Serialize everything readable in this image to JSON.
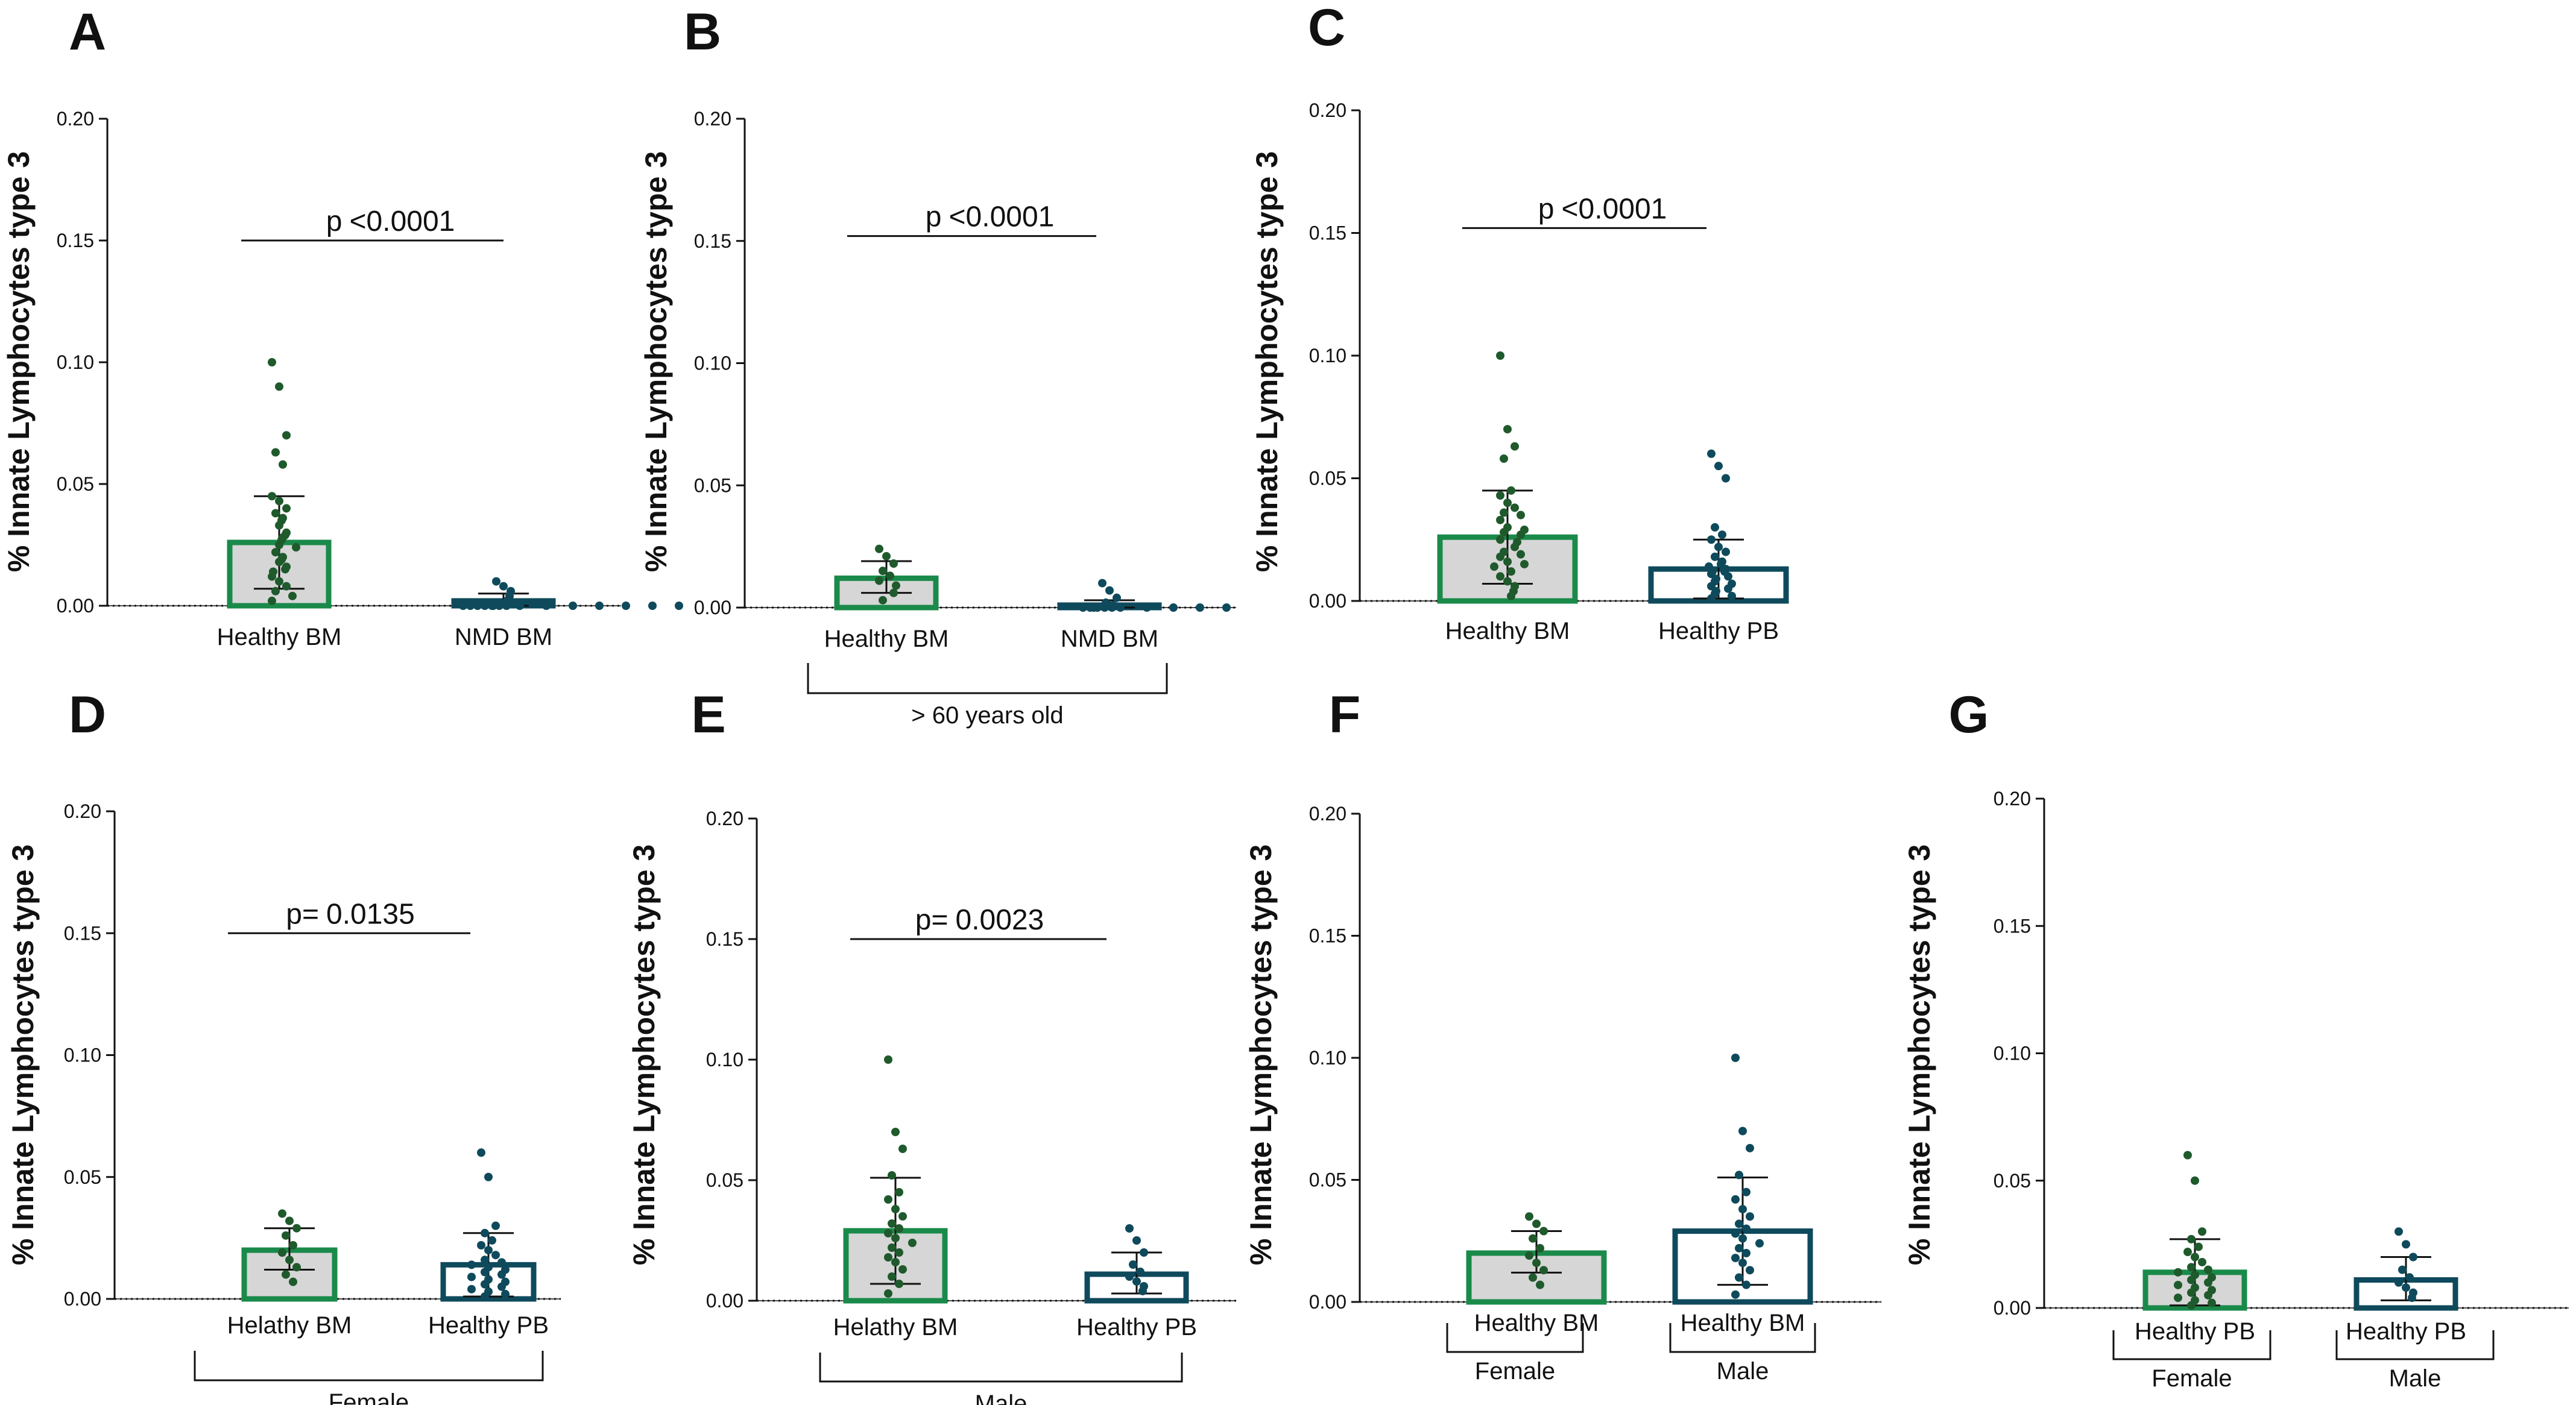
{
  "colors": {
    "green": "#1a8a4a",
    "teal": "#0e4a5c",
    "dot_green": "#1f5a2c",
    "dot_teal": "#0e4a5c",
    "bar_fill_green": "#d6d6d6",
    "bar_fill_teal": "#ffffff",
    "axis": "#111111"
  },
  "chart_data": [
    {
      "id": "A",
      "type": "bar",
      "panel": "A",
      "ylabel": "% Innate Lymphocytes type 3",
      "ylim": [
        0,
        0.2
      ],
      "yticks": [
        "0.00",
        "0.05",
        "0.10",
        "0.15",
        "0.20"
      ],
      "categories": [
        "Healthy BM",
        "NMD BM"
      ],
      "series": [
        {
          "name": "Healthy BM",
          "color": "green",
          "value": 0.026,
          "sd_low": 0.007,
          "sd_high": 0.045,
          "points": [
            0.1,
            0.09,
            0.07,
            0.063,
            0.058,
            0.045,
            0.043,
            0.04,
            0.038,
            0.036,
            0.035,
            0.033,
            0.03,
            0.029,
            0.028,
            0.027,
            0.025,
            0.024,
            0.022,
            0.02,
            0.019,
            0.018,
            0.016,
            0.015,
            0.014,
            0.012,
            0.01,
            0.008,
            0.006,
            0.004,
            0.002
          ]
        },
        {
          "name": "NMD BM",
          "color": "teal",
          "value": 0.002,
          "sd_low": 0.0,
          "sd_high": 0.005,
          "points": [
            0.01,
            0.008,
            0.006,
            0.004,
            0.002,
            0.001,
            0.001,
            0.001,
            0,
            0,
            0,
            0,
            0,
            0,
            0,
            0,
            0,
            0,
            0,
            0,
            0,
            0,
            0
          ]
        }
      ],
      "annotation": {
        "label": "p",
        "value": "<0.0001",
        "y": 0.15
      },
      "group_label": ""
    },
    {
      "id": "B",
      "type": "bar",
      "panel": "B",
      "ylabel": "% Innate Lymphocytes type 3",
      "ylim": [
        0,
        0.2
      ],
      "yticks": [
        "0.00",
        "0.05",
        "0.10",
        "0.15",
        "0.20"
      ],
      "categories": [
        "Healthy BM",
        "NMD BM"
      ],
      "series": [
        {
          "name": "Healthy BM",
          "color": "green",
          "value": 0.012,
          "sd_low": 0.006,
          "sd_high": 0.019,
          "points": [
            0.024,
            0.021,
            0.018,
            0.015,
            0.013,
            0.011,
            0.009,
            0.006,
            0.003
          ]
        },
        {
          "name": "NMD BM",
          "color": "teal",
          "value": 0.001,
          "sd_low": 0.0,
          "sd_high": 0.003,
          "points": [
            0.01,
            0.007,
            0.004,
            0.002,
            0.001,
            0,
            0,
            0,
            0,
            0,
            0,
            0,
            0,
            0,
            0,
            0
          ]
        }
      ],
      "annotation": {
        "label": "p",
        "value": "<0.0001",
        "y": 0.152
      },
      "group_label": "> 60 years old"
    },
    {
      "id": "C",
      "type": "bar",
      "panel": "C",
      "ylabel": "% Innate Lymphocytes type 3",
      "ylim": [
        0,
        0.2
      ],
      "yticks": [
        "0.00",
        "0.05",
        "0.10",
        "0.15",
        "0.20"
      ],
      "categories": [
        "Healthy BM",
        "Healthy PB"
      ],
      "series": [
        {
          "name": "Healthy BM",
          "color": "green",
          "value": 0.026,
          "sd_low": 0.007,
          "sd_high": 0.045,
          "points": [
            0.1,
            0.07,
            0.063,
            0.058,
            0.045,
            0.043,
            0.04,
            0.038,
            0.036,
            0.035,
            0.033,
            0.03,
            0.029,
            0.028,
            0.027,
            0.025,
            0.024,
            0.022,
            0.02,
            0.019,
            0.018,
            0.016,
            0.015,
            0.014,
            0.012,
            0.01,
            0.008,
            0.006,
            0.004,
            0.002
          ]
        },
        {
          "name": "Healthy PB",
          "color": "teal",
          "value": 0.013,
          "sd_low": 0.001,
          "sd_high": 0.025,
          "points": [
            0.06,
            0.055,
            0.05,
            0.03,
            0.027,
            0.025,
            0.022,
            0.02,
            0.018,
            0.016,
            0.015,
            0.014,
            0.013,
            0.012,
            0.012,
            0.011,
            0.01,
            0.009,
            0.008,
            0.007,
            0.006,
            0.005,
            0.004,
            0.003,
            0.002,
            0.001
          ]
        }
      ],
      "annotation": {
        "label": "p",
        "value": "<0.0001",
        "y": 0.152
      },
      "group_label": ""
    },
    {
      "id": "D",
      "type": "bar",
      "panel": "D",
      "ylabel": "% Innate Lymphocytes type 3",
      "ylim": [
        0,
        0.2
      ],
      "yticks": [
        "0.00",
        "0.05",
        "0.10",
        "0.15",
        "0.20"
      ],
      "categories": [
        "Helathy BM",
        "Healthy PB"
      ],
      "series": [
        {
          "name": "Helathy BM",
          "color": "green",
          "value": 0.02,
          "sd_low": 0.012,
          "sd_high": 0.029,
          "points": [
            0.035,
            0.032,
            0.029,
            0.026,
            0.022,
            0.019,
            0.016,
            0.013,
            0.01,
            0.007
          ]
        },
        {
          "name": "Healthy PB",
          "color": "teal",
          "value": 0.014,
          "sd_low": 0.001,
          "sd_high": 0.027,
          "points": [
            0.06,
            0.05,
            0.03,
            0.027,
            0.024,
            0.022,
            0.02,
            0.018,
            0.016,
            0.015,
            0.014,
            0.013,
            0.012,
            0.011,
            0.01,
            0.009,
            0.008,
            0.007,
            0.006,
            0.005,
            0.004,
            0.003,
            0.002,
            0.001
          ]
        }
      ],
      "annotation": {
        "label": "p=",
        "value": "0.0135",
        "y": 0.15
      },
      "group_label": "Female"
    },
    {
      "id": "E",
      "type": "bar",
      "panel": "E",
      "ylabel": "% Innate Lymphocytes type 3",
      "ylim": [
        0,
        0.2
      ],
      "yticks": [
        "0.00",
        "0.05",
        "0.10",
        "0.15",
        "0.20"
      ],
      "categories": [
        "Helathy BM",
        "Healthy PB"
      ],
      "series": [
        {
          "name": "Helathy BM",
          "color": "green",
          "value": 0.029,
          "sd_low": 0.007,
          "sd_high": 0.051,
          "points": [
            0.1,
            0.07,
            0.063,
            0.052,
            0.045,
            0.042,
            0.038,
            0.035,
            0.032,
            0.03,
            0.028,
            0.026,
            0.024,
            0.022,
            0.02,
            0.018,
            0.016,
            0.013,
            0.01,
            0.007,
            0.003
          ]
        },
        {
          "name": "Healthy PB",
          "color": "teal",
          "value": 0.011,
          "sd_low": 0.003,
          "sd_high": 0.02,
          "points": [
            0.03,
            0.025,
            0.02,
            0.015,
            0.012,
            0.01,
            0.008,
            0.006,
            0.004
          ]
        }
      ],
      "annotation": {
        "label": "p=",
        "value": "0.0023",
        "y": 0.15
      },
      "group_label": "Male"
    },
    {
      "id": "F",
      "type": "bar",
      "panel": "F",
      "ylabel": "% Innate Lymphocytes type 3",
      "ylim": [
        0,
        0.2
      ],
      "yticks": [
        "0.00",
        "0.05",
        "0.10",
        "0.15",
        "0.20"
      ],
      "categories": [
        "Healthy BM",
        "Healthy BM"
      ],
      "series": [
        {
          "name": "Healthy BM (Female)",
          "color": "green",
          "value": 0.02,
          "sd_low": 0.012,
          "sd_high": 0.029,
          "points": [
            0.035,
            0.032,
            0.029,
            0.026,
            0.022,
            0.019,
            0.016,
            0.013,
            0.01,
            0.007
          ]
        },
        {
          "name": "Healthy BM (Male)",
          "color": "teal",
          "value": 0.029,
          "sd_low": 0.007,
          "sd_high": 0.051,
          "points": [
            0.1,
            0.07,
            0.063,
            0.052,
            0.045,
            0.042,
            0.038,
            0.035,
            0.032,
            0.03,
            0.028,
            0.026,
            0.024,
            0.022,
            0.02,
            0.018,
            0.016,
            0.013,
            0.01,
            0.007,
            0.003
          ]
        }
      ],
      "annotation": null,
      "subgroups": [
        "Female",
        "Male"
      ],
      "group_label": ""
    },
    {
      "id": "G",
      "type": "bar",
      "panel": "G",
      "ylabel": "% Innate Lymphocytes type 3",
      "ylim": [
        0,
        0.2
      ],
      "yticks": [
        "0.00",
        "0.05",
        "0.10",
        "0.15",
        "0.20"
      ],
      "categories": [
        "Healthy PB",
        "Healthy PB"
      ],
      "series": [
        {
          "name": "Healthy PB (Female)",
          "color": "green",
          "value": 0.014,
          "sd_low": 0.001,
          "sd_high": 0.027,
          "points": [
            0.06,
            0.05,
            0.03,
            0.027,
            0.024,
            0.022,
            0.02,
            0.018,
            0.016,
            0.015,
            0.014,
            0.013,
            0.012,
            0.011,
            0.01,
            0.009,
            0.008,
            0.007,
            0.006,
            0.005,
            0.004,
            0.003,
            0.002,
            0.001
          ]
        },
        {
          "name": "Healthy PB (Male)",
          "color": "teal",
          "value": 0.011,
          "sd_low": 0.003,
          "sd_high": 0.02,
          "points": [
            0.03,
            0.025,
            0.02,
            0.015,
            0.012,
            0.01,
            0.008,
            0.006,
            0.004
          ]
        }
      ],
      "annotation": null,
      "subgroups": [
        "Female",
        "Male"
      ],
      "group_label": ""
    }
  ]
}
